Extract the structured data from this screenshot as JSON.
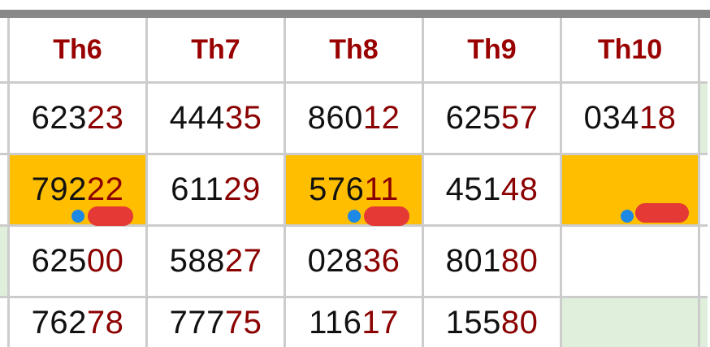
{
  "headers": [
    "Th6",
    "Th7",
    "Th8",
    "Th9",
    "Th10"
  ],
  "rows": [
    [
      {
        "head": "623",
        "tail": "23"
      },
      {
        "head": "444",
        "tail": "35"
      },
      {
        "head": "860",
        "tail": "12"
      },
      {
        "head": "625",
        "tail": "57"
      },
      {
        "head": "034",
        "tail": "18"
      }
    ],
    [
      {
        "head": "792",
        "tail": "22",
        "highlight": true,
        "mark": true
      },
      {
        "head": "611",
        "tail": "29"
      },
      {
        "head": "576",
        "tail": "11",
        "highlight": true,
        "mark": true
      },
      {
        "head": "451",
        "tail": "48"
      },
      {
        "head": "",
        "tail": "",
        "highlight": true,
        "mark": true
      }
    ],
    [
      {
        "head": "625",
        "tail": "00"
      },
      {
        "head": "588",
        "tail": "27"
      },
      {
        "head": "028",
        "tail": "36"
      },
      {
        "head": "801",
        "tail": "80"
      },
      {
        "head": "",
        "tail": ""
      }
    ],
    [
      {
        "head": "762",
        "tail": "78"
      },
      {
        "head": "777",
        "tail": "75"
      },
      {
        "head": "116",
        "tail": "17"
      },
      {
        "head": "155",
        "tail": "80"
      },
      {
        "head": "",
        "tail": "",
        "green": true
      }
    ]
  ],
  "colors": {
    "header": "#990000",
    "tail": "#8b0000",
    "highlight": "#ffbf00",
    "green": "#dfefdb",
    "dot": "#1e88e5",
    "mark": "#e53935"
  }
}
